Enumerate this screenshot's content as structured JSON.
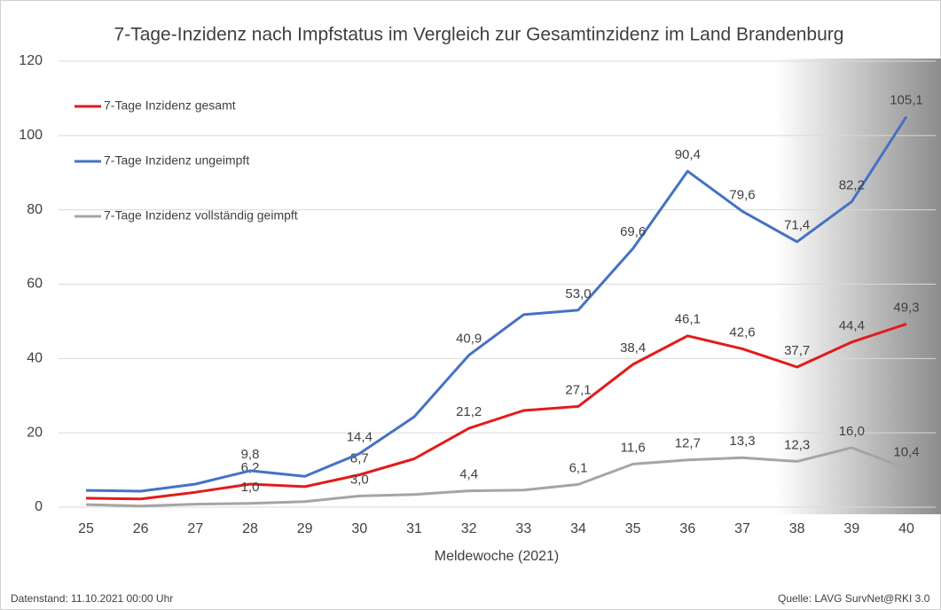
{
  "chart_data": {
    "type": "line",
    "title": "7-Tage-Inzidenz nach Impfstatus im Vergleich zur Gesamtinzidenz im Land Brandenburg",
    "x_label": "Meldewoche (2021)",
    "categories": [
      "25",
      "26",
      "27",
      "28",
      "29",
      "30",
      "31",
      "32",
      "33",
      "34",
      "35",
      "36",
      "37",
      "38",
      "39",
      "40"
    ],
    "ylim": [
      0,
      120
    ],
    "yticks": [
      0,
      20,
      40,
      60,
      80,
      100,
      120
    ],
    "grid": true,
    "legend": "top-left",
    "series": [
      {
        "name": "7-Tage Inzidenz gesamt",
        "color": "#e31b1b",
        "values": [
          2.4,
          2.2,
          4.0,
          6.2,
          5.5,
          8.7,
          13.0,
          21.2,
          26.0,
          27.1,
          38.4,
          46.1,
          42.6,
          37.7,
          44.4,
          49.3
        ],
        "value_labels": [
          null,
          null,
          null,
          "6,2",
          null,
          "8,7",
          null,
          "21,2",
          null,
          "27,1",
          "38,4",
          "46,1",
          "42,6",
          "37,7",
          "44,4",
          "49,3"
        ]
      },
      {
        "name": "7-Tage Inzidenz ungeimpft",
        "color": "#4472c4",
        "values": [
          4.5,
          4.3,
          6.2,
          9.8,
          8.3,
          14.4,
          24.3,
          40.9,
          51.8,
          53.0,
          69.6,
          90.4,
          79.6,
          71.4,
          82.2,
          105.1
        ],
        "value_labels": [
          null,
          null,
          null,
          "9,8",
          null,
          "14,4",
          null,
          "40,9",
          null,
          "53,0",
          "69,6",
          "90,4",
          "79,6",
          "71,4",
          "82,2",
          "105,1"
        ]
      },
      {
        "name": "7-Tage Inzidenz vollständig geimpft",
        "color": "#a5a5a5",
        "values": [
          0.7,
          0.3,
          0.8,
          1.0,
          1.5,
          3.0,
          3.4,
          4.4,
          4.6,
          6.1,
          11.6,
          12.7,
          13.3,
          12.3,
          16.0,
          10.4
        ],
        "value_labels": [
          null,
          null,
          null,
          "1,0",
          null,
          "3,0",
          null,
          "4,4",
          null,
          "6,1",
          "11,6",
          "12,7",
          "13,3",
          "12,3",
          "16,0",
          "10,4"
        ]
      }
    ],
    "footer_left": "Datenstand: 11.10.2021  00:00 Uhr",
    "footer_right": "Quelle: LAVG SurvNet@RKI 3.0"
  }
}
